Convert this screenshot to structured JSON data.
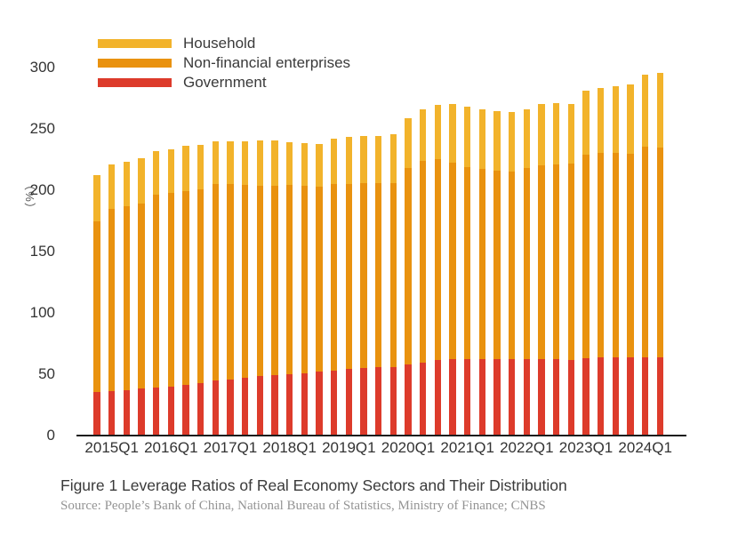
{
  "legend": {
    "items": [
      {
        "label": "Household",
        "color": "#F2B32B"
      },
      {
        "label": "Non-financial enterprises",
        "color": "#E9920F"
      },
      {
        "label": "Government",
        "color": "#DD3B2B"
      }
    ]
  },
  "y_axis": {
    "unit_label": "（%）",
    "ticks": [
      0,
      50,
      100,
      150,
      200,
      250,
      300
    ]
  },
  "x_axis": {
    "tick_labels": [
      "2015Q1",
      "2016Q1",
      "2017Q1",
      "2018Q1",
      "2019Q1",
      "2020Q1",
      "2021Q1",
      "2022Q1",
      "2023Q1",
      "2024Q1"
    ],
    "tick_bar_indices": [
      1,
      5,
      9,
      13,
      17,
      21,
      25,
      29,
      33,
      37
    ]
  },
  "caption": {
    "title": "Figure 1 Leverage Ratios of Real Economy Sectors and Their Distribution",
    "source": "Source: People’s Bank of China, National Bureau of Statistics, Ministry of Finance; CNBS"
  },
  "chart_data": {
    "type": "bar",
    "stacked": true,
    "title": "Figure 1 Leverage Ratios of Real Economy Sectors and Their Distribution",
    "xlabel": "",
    "ylabel": "（%）",
    "ylim": [
      0,
      300
    ],
    "grid": false,
    "legend_position": "top-left",
    "categories": [
      "2014Q4",
      "2015Q1",
      "2015Q2",
      "2015Q3",
      "2015Q4",
      "2016Q1",
      "2016Q2",
      "2016Q3",
      "2016Q4",
      "2017Q1",
      "2017Q2",
      "2017Q3",
      "2017Q4",
      "2018Q1",
      "2018Q2",
      "2018Q3",
      "2018Q4",
      "2019Q1",
      "2019Q2",
      "2019Q3",
      "2019Q4",
      "2020Q1",
      "2020Q2",
      "2020Q3",
      "2020Q4",
      "2021Q1",
      "2021Q2",
      "2021Q3",
      "2021Q4",
      "2022Q1",
      "2022Q2",
      "2022Q3",
      "2022Q4",
      "2023Q1",
      "2023Q2",
      "2023Q3",
      "2023Q4",
      "2024Q1",
      "2024Q2"
    ],
    "series": [
      {
        "name": "Government",
        "color": "#DD3B2B",
        "stack_position": "bottom",
        "values": [
          35.7,
          36.4,
          37.3,
          38.2,
          39.2,
          40.2,
          41.5,
          43.0,
          44.8,
          45.9,
          47.1,
          48.3,
          49.0,
          50.0,
          51.0,
          52.1,
          53.2,
          54.3,
          55.4,
          56.0,
          56.1,
          57.7,
          59.7,
          61.4,
          62.2,
          62.1,
          62.0,
          62.1,
          62.2,
          62.1,
          62.3,
          62.4,
          61.9,
          63.3,
          63.5,
          63.8,
          63.5,
          64.0,
          63.5
        ]
      },
      {
        "name": "Non-financial enterprises",
        "color": "#E9920F",
        "stack_position": "middle",
        "values": [
          138.9,
          148.6,
          149.7,
          150.8,
          157.3,
          157.3,
          157.5,
          157.5,
          160.2,
          159.1,
          157.4,
          155.2,
          154.5,
          154.0,
          152.5,
          150.9,
          151.8,
          151.0,
          150.4,
          149.8,
          149.7,
          160.2,
          164.4,
          163.7,
          160.5,
          157.0,
          155.4,
          153.7,
          153.3,
          156.0,
          158.2,
          158.6,
          159.6,
          165.4,
          166.7,
          166.4,
          166.0,
          171.5,
          171.5
        ]
      },
      {
        "name": "Household",
        "color": "#F2B32B",
        "stack_position": "top",
        "values": [
          37.4,
          36.0,
          36.5,
          37.0,
          35.5,
          36.0,
          37.0,
          36.5,
          35.0,
          35.0,
          35.5,
          37.0,
          37.0,
          35.0,
          35.0,
          34.5,
          37.0,
          38.2,
          38.7,
          38.7,
          40.2,
          41.1,
          41.9,
          44.4,
          47.3,
          48.9,
          48.6,
          48.7,
          48.0,
          47.9,
          50.0,
          50.0,
          49.0,
          52.3,
          52.8,
          54.3,
          57.0,
          58.5,
          60.5
        ]
      }
    ]
  }
}
